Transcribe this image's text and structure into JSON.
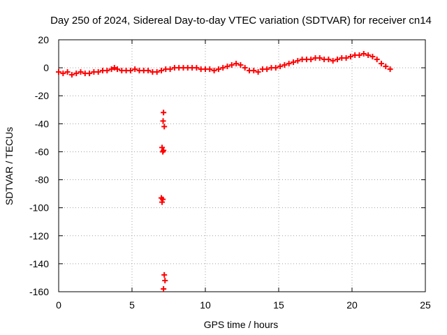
{
  "chart_data": {
    "type": "scatter",
    "title": "Day 250 of 2024, Sidereal Day-to-day VTEC variation (SDTVAR) for receiver cn14",
    "xlabel": "GPS time / hours",
    "ylabel": "SDTVAR / TECUs",
    "xlim": [
      0,
      25
    ],
    "ylim": [
      -160,
      20
    ],
    "xticks": [
      0,
      5,
      10,
      15,
      20,
      25
    ],
    "yticks": [
      20,
      0,
      -20,
      -40,
      -60,
      -80,
      -100,
      -120,
      -140,
      -160
    ],
    "grid": true,
    "marker": "+",
    "color": "#ff0000",
    "series": [
      {
        "name": "SDTVAR",
        "x": [
          0.0,
          0.3,
          0.6,
          0.9,
          1.2,
          1.5,
          1.8,
          2.1,
          2.4,
          2.7,
          3.0,
          3.3,
          3.6,
          3.8,
          4.0,
          4.3,
          4.6,
          4.9,
          5.2,
          5.5,
          5.8,
          6.1,
          6.4,
          6.7,
          7.0,
          7.3,
          7.6,
          7.9,
          8.2,
          8.5,
          8.8,
          9.1,
          9.4,
          9.7,
          10.0,
          10.3,
          10.6,
          10.9,
          11.2,
          11.5,
          11.8,
          12.1,
          12.4,
          12.7,
          13.0,
          13.3,
          13.6,
          13.9,
          14.2,
          14.5,
          14.8,
          15.1,
          15.4,
          15.7,
          16.0,
          16.3,
          16.6,
          16.9,
          17.2,
          17.5,
          17.8,
          18.1,
          18.4,
          18.7,
          19.0,
          19.3,
          19.6,
          19.9,
          20.2,
          20.5,
          20.8,
          21.1,
          21.4,
          21.7,
          22.0,
          22.3,
          22.6,
          7.15,
          7.12,
          7.2,
          7.05,
          7.1,
          7.15,
          7.0,
          7.05,
          7.1,
          7.2,
          7.25,
          7.15
        ],
        "y": [
          -3,
          -4,
          -3,
          -5,
          -4,
          -3,
          -4,
          -4,
          -3,
          -3,
          -2,
          -2,
          -1,
          0,
          -1,
          -2,
          -2,
          -2,
          -1,
          -2,
          -2,
          -2,
          -3,
          -3,
          -2,
          -1,
          -1,
          0,
          0,
          0,
          0,
          0,
          0,
          -1,
          -1,
          -1,
          -2,
          -1,
          0,
          1,
          2,
          3,
          2,
          0,
          -2,
          -2,
          -3,
          -1,
          -1,
          0,
          0,
          1,
          2,
          3,
          4,
          5,
          6,
          6,
          6,
          7,
          7,
          6,
          6,
          5,
          6,
          7,
          7,
          8,
          9,
          9,
          10,
          9,
          8,
          6,
          3,
          1,
          -1,
          -32,
          -38,
          -42,
          -57,
          -60,
          -59,
          -93,
          -96,
          -94,
          -148,
          -152,
          -158
        ]
      }
    ]
  }
}
